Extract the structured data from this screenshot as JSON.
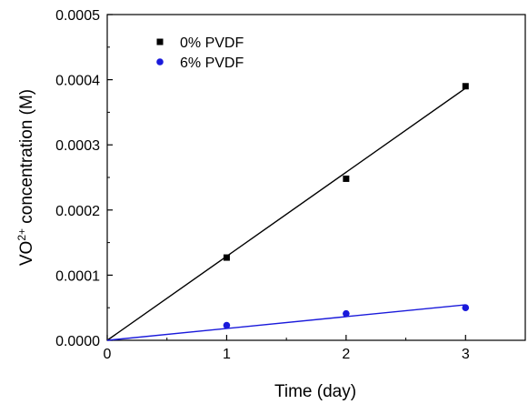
{
  "chart_data": {
    "type": "scatter",
    "xlabel": "Time (day)",
    "ylabel": {
      "base": "VO",
      "superscript": "2+",
      "rest": " concentration (M)"
    },
    "xlim": [
      0,
      3.5
    ],
    "ylim": [
      0,
      0.0005
    ],
    "x_ticks": [
      0,
      1,
      2,
      3
    ],
    "x_tick_labels": [
      "0",
      "1",
      "2",
      "3"
    ],
    "y_ticks": [
      0,
      0.0001,
      0.0002,
      0.0003,
      0.0004,
      0.0005
    ],
    "y_tick_labels": [
      "0.0000",
      "0.0001",
      "0.0002",
      "0.0003",
      "0.0004",
      "0.0005"
    ],
    "grid": false,
    "legend_position": "top-left",
    "series": [
      {
        "name": "0% PVDF",
        "marker": "square",
        "color": "#000000",
        "x": [
          1,
          2,
          3
        ],
        "y": [
          0.000127,
          0.000248,
          0.00039
        ],
        "fit_line": {
          "x": [
            0,
            3
          ],
          "y": [
            0,
            0.000387
          ]
        }
      },
      {
        "name": "6% PVDF",
        "marker": "circle",
        "color": "#1a1adb",
        "x": [
          1,
          2,
          3
        ],
        "y": [
          2.3e-05,
          4.1e-05,
          5e-05
        ],
        "fit_line": {
          "x": [
            0,
            3
          ],
          "y": [
            0,
            5.45e-05
          ]
        }
      }
    ]
  }
}
